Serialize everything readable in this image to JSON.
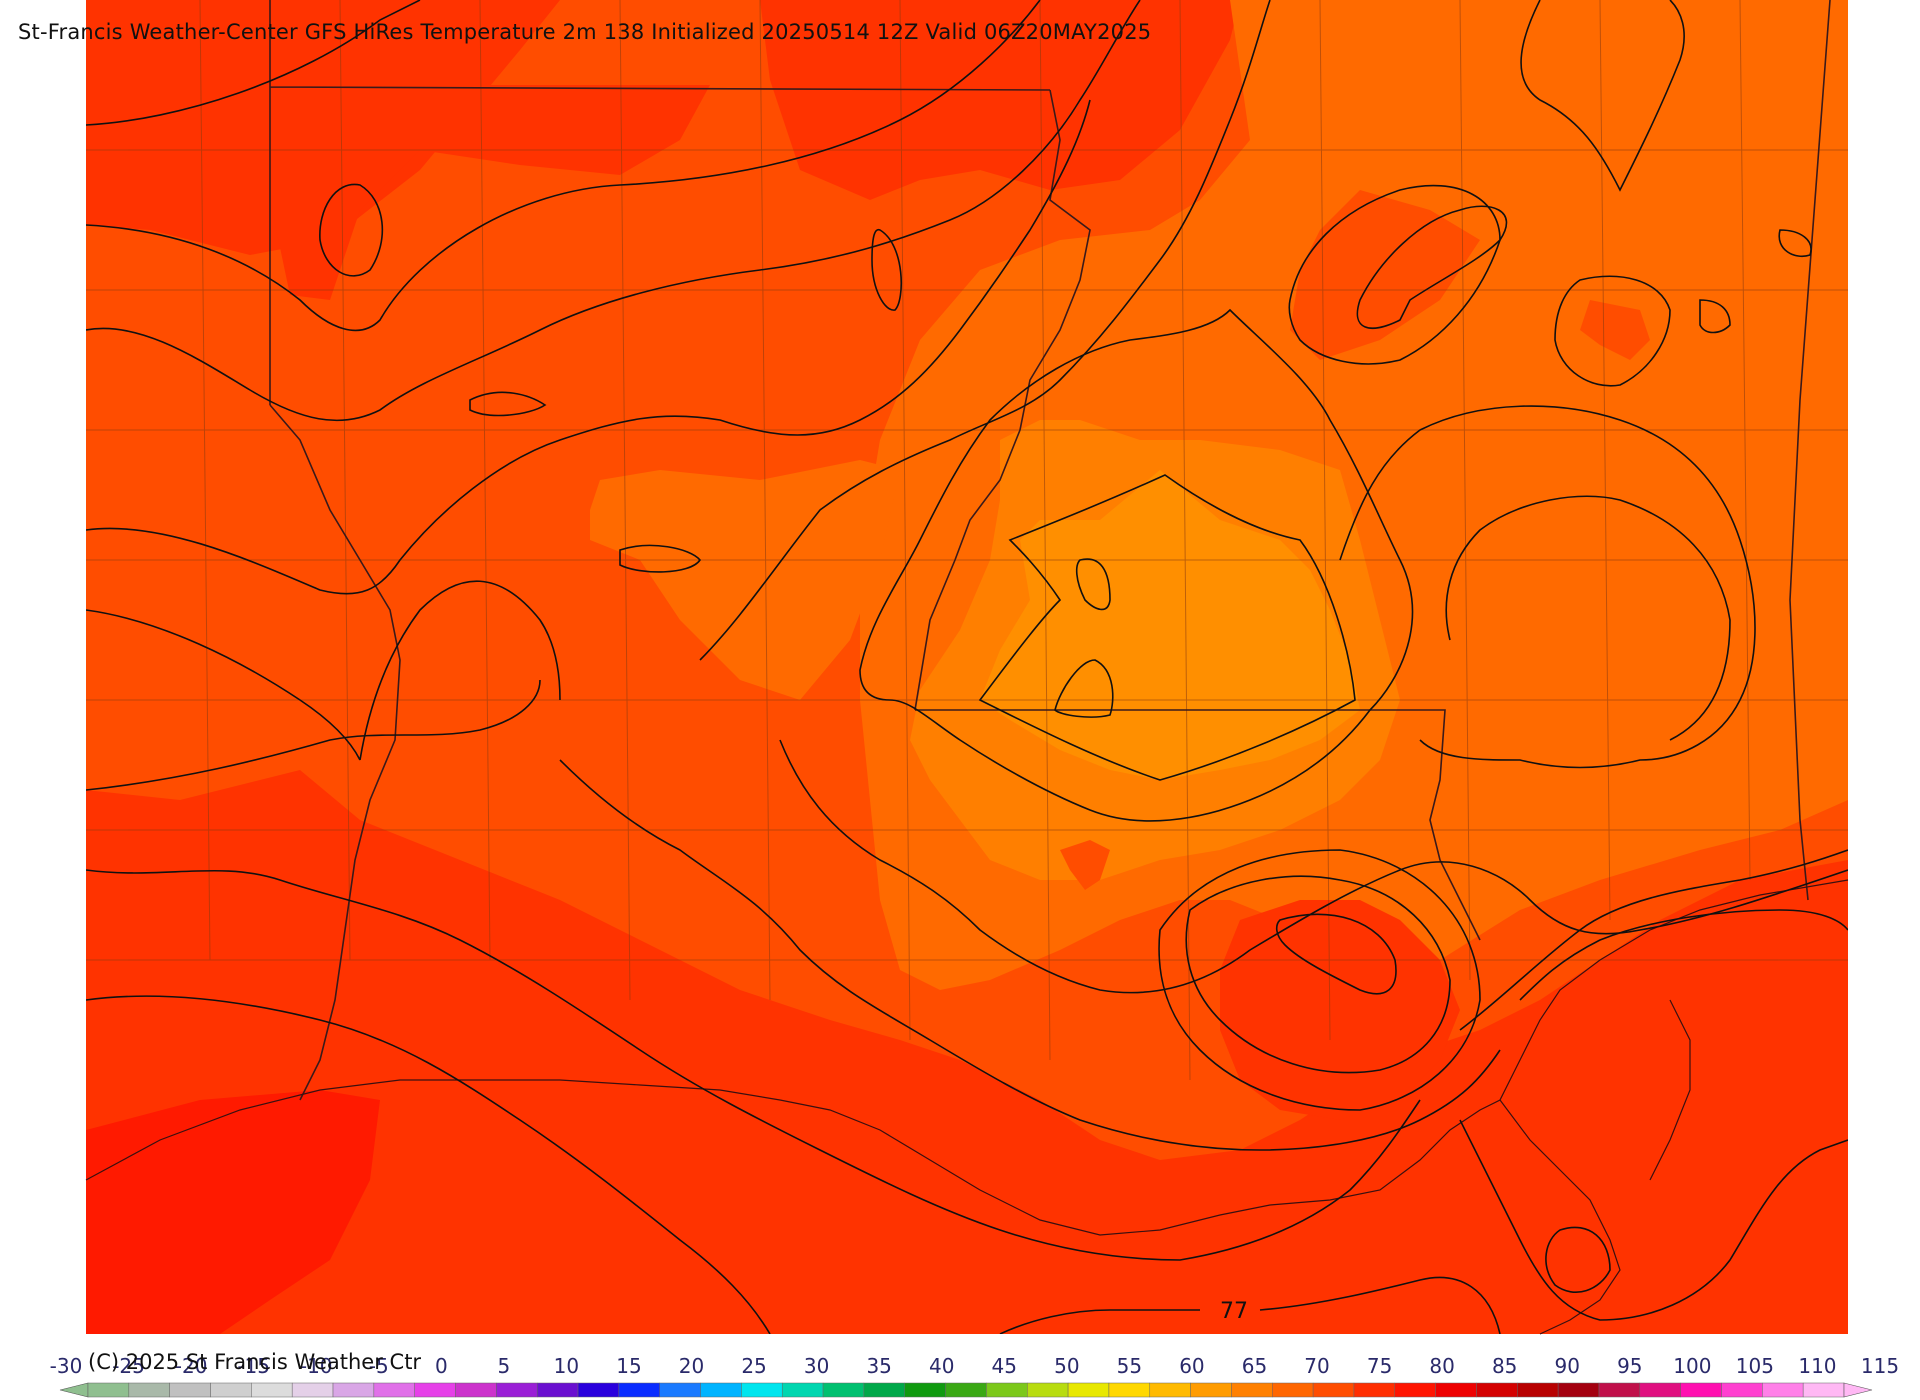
{
  "title": "St-Francis Weather-Center GFS HiRes Temperature 2m  138 Initialized 20250514 12Z Valid 06Z20MAY2025",
  "copyright": "(C) 2025 St Francis Weather Ctr",
  "contour_label": "77",
  "colorbar": {
    "labels": [
      "-30",
      "-25",
      "-20",
      "-15",
      "-10",
      "-5",
      "0",
      "5",
      "10",
      "15",
      "20",
      "25",
      "30",
      "35",
      "40",
      "45",
      "50",
      "55",
      "60",
      "65",
      "70",
      "75",
      "80",
      "85",
      "90",
      "95",
      "100",
      "105",
      "110",
      "115"
    ],
    "colors": [
      "#8fbf8f",
      "#a9b9a9",
      "#c0c0c0",
      "#cfcfcf",
      "#dcdcdc",
      "#e4d0e8",
      "#d9a6e6",
      "#e070e8",
      "#e640e8",
      "#cc33cc",
      "#9a1fd6",
      "#6a10d0",
      "#2a00dd",
      "#0a2cff",
      "#1a7aff",
      "#00b4ff",
      "#00e5ee",
      "#00d6b0",
      "#00c070",
      "#00a84a",
      "#109a10",
      "#3aa814",
      "#7cc81a",
      "#b8dc10",
      "#e8e800",
      "#ffd800",
      "#ffba00",
      "#ff9c00",
      "#ff8000",
      "#ff6600",
      "#ff4d00",
      "#ff2e00",
      "#ff1400",
      "#ee0000",
      "#d40000",
      "#b80000",
      "#a40010",
      "#c0104a",
      "#e01080",
      "#ff10b0",
      "#ff40d0",
      "#ff80e8",
      "#ffb8f4"
    ]
  },
  "fill_colors": {
    "deep_red": "#ff1a00",
    "red": "#ff3300",
    "red_orange": "#ff4d00",
    "orange": "#ff6a00",
    "light_orange": "#ff7f00",
    "amber": "#ff8f00"
  }
}
